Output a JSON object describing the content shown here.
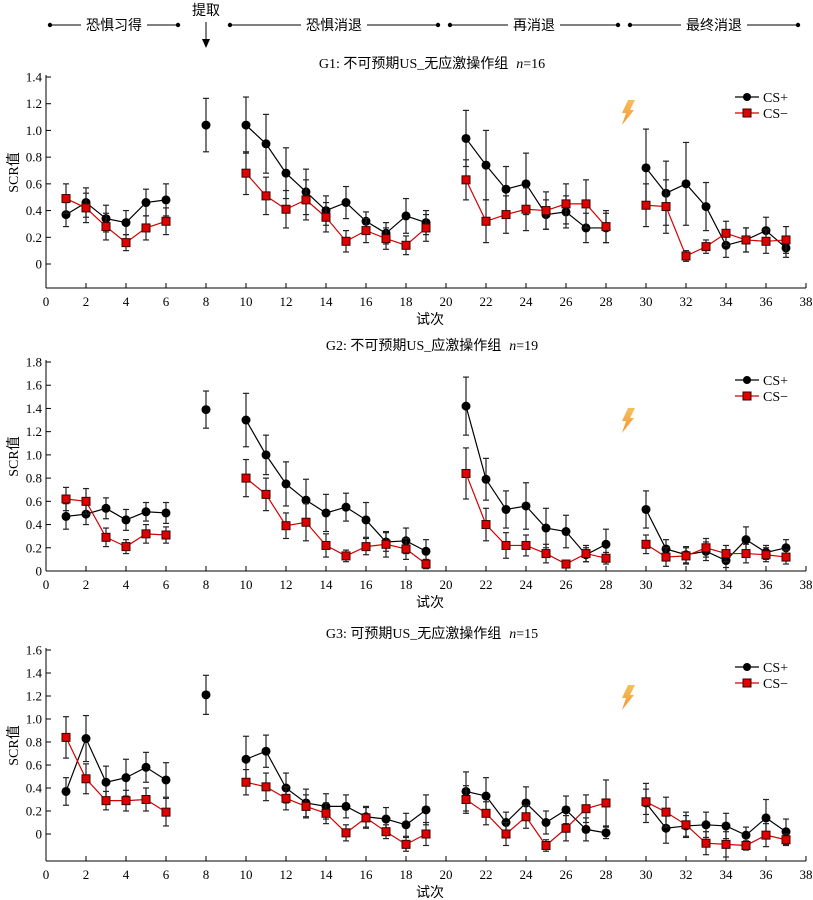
{
  "header": {
    "phases": [
      {
        "label": "恐惧习得",
        "x_start": 1,
        "x_end": 6
      },
      {
        "label": "恐惧消退",
        "x_start": 10,
        "x_end": 19
      },
      {
        "label": "再消退",
        "x_start": 21,
        "x_end": 28
      },
      {
        "label": "最终消退",
        "x_start": 30,
        "x_end": 37
      }
    ],
    "retrieval": {
      "label": "提取",
      "x": 8
    }
  },
  "colors": {
    "cs_plus": "#000000",
    "cs_minus_line": "#d40000",
    "cs_minus_fill": "#e00000",
    "lightning": "#f5a623"
  },
  "chart_data": [
    {
      "type": "line",
      "title": "G1: 不可预期US_无应激操作组",
      "n_label": "n",
      "n_value": "=16",
      "xlabel": "试次",
      "ylabel": "SCR值",
      "xlim": [
        0,
        38
      ],
      "ylim": [
        -0.18,
        1.4
      ],
      "xticks": [
        0,
        2,
        4,
        6,
        8,
        10,
        12,
        14,
        16,
        18,
        20,
        22,
        24,
        26,
        28,
        30,
        32,
        34,
        36,
        38
      ],
      "yticks": [
        0,
        0.2,
        0.4,
        0.6,
        0.8,
        1.0,
        1.2,
        1.4
      ],
      "ytick_labels": [
        "0",
        "0.2",
        "0.4",
        "0.6",
        "0.8",
        "1.0",
        "1.2",
        "1.4"
      ],
      "legend": [
        "CS+",
        "CS−"
      ],
      "legend_position": "top-right",
      "segments": [
        [
          1,
          6
        ],
        [
          8,
          8
        ],
        [
          10,
          19
        ],
        [
          21,
          28
        ],
        [
          30,
          37
        ]
      ],
      "series": [
        {
          "name": "CS+",
          "marker": "circle",
          "x": [
            1,
            2,
            3,
            4,
            5,
            6,
            8,
            10,
            11,
            12,
            13,
            14,
            15,
            16,
            17,
            18,
            19,
            21,
            22,
            23,
            24,
            25,
            26,
            27,
            28,
            30,
            31,
            32,
            33,
            34,
            35,
            36,
            37
          ],
          "y": [
            0.37,
            0.46,
            0.34,
            0.31,
            0.46,
            0.48,
            1.04,
            1.04,
            0.9,
            0.68,
            0.54,
            0.4,
            0.46,
            0.32,
            0.23,
            0.36,
            0.31,
            0.94,
            0.74,
            0.56,
            0.6,
            0.37,
            0.39,
            0.27,
            0.27,
            0.72,
            0.53,
            0.6,
            0.43,
            0.14,
            0.18,
            0.25,
            0.12
          ],
          "err": [
            0.09,
            0.11,
            0.1,
            0.09,
            0.1,
            0.12,
            0.2,
            0.21,
            0.22,
            0.19,
            0.17,
            0.11,
            0.12,
            0.07,
            0.08,
            0.13,
            0.09,
            0.21,
            0.26,
            0.17,
            0.23,
            0.11,
            0.12,
            0.11,
            0.11,
            0.29,
            0.24,
            0.31,
            0.18,
            0.09,
            0.09,
            0.1,
            0.07
          ]
        },
        {
          "name": "CS−",
          "marker": "square",
          "x": [
            1,
            2,
            3,
            4,
            5,
            6,
            10,
            11,
            12,
            13,
            14,
            15,
            16,
            17,
            18,
            19,
            21,
            22,
            23,
            24,
            25,
            26,
            27,
            28,
            30,
            31,
            32,
            33,
            34,
            35,
            36,
            37
          ],
          "y": [
            0.49,
            0.42,
            0.28,
            0.16,
            0.27,
            0.32,
            0.68,
            0.51,
            0.41,
            0.48,
            0.35,
            0.17,
            0.25,
            0.19,
            0.14,
            0.27,
            0.63,
            0.32,
            0.37,
            0.41,
            0.4,
            0.45,
            0.45,
            0.28,
            0.44,
            0.43,
            0.06,
            0.13,
            0.23,
            0.18,
            0.17,
            0.18
          ],
          "err": [
            0.11,
            0.11,
            0.1,
            0.06,
            0.09,
            0.1,
            0.16,
            0.14,
            0.14,
            0.15,
            0.11,
            0.08,
            0.09,
            0.08,
            0.07,
            0.1,
            0.15,
            0.16,
            0.14,
            0.16,
            0.14,
            0.15,
            0.18,
            0.12,
            0.16,
            0.2,
            0.04,
            0.05,
            0.09,
            0.09,
            0.09,
            0.1
          ]
        }
      ]
    },
    {
      "type": "line",
      "title": "G2: 不可预期US_应激操作组",
      "n_label": "n",
      "n_value": "=19",
      "xlabel": "试次",
      "ylabel": "SCR值",
      "xlim": [
        0,
        38
      ],
      "ylim": [
        0,
        1.8
      ],
      "xticks": [
        0,
        2,
        4,
        6,
        8,
        10,
        12,
        14,
        16,
        18,
        20,
        22,
        24,
        26,
        28,
        30,
        32,
        34,
        36,
        38
      ],
      "yticks": [
        0,
        0.2,
        0.4,
        0.6,
        0.8,
        1.0,
        1.2,
        1.4,
        1.6,
        1.8
      ],
      "ytick_labels": [
        "0",
        "0.2",
        "0.4",
        "0.6",
        "0.8",
        "1.0",
        "1.2",
        "1.4",
        "1.6",
        "1.8"
      ],
      "legend": [
        "CS+",
        "CS−"
      ],
      "legend_position": "top-right",
      "segments": [
        [
          1,
          6
        ],
        [
          8,
          8
        ],
        [
          10,
          19
        ],
        [
          21,
          28
        ],
        [
          30,
          37
        ]
      ],
      "series": [
        {
          "name": "CS+",
          "marker": "circle",
          "x": [
            1,
            2,
            3,
            4,
            5,
            6,
            8,
            10,
            11,
            12,
            13,
            14,
            15,
            16,
            17,
            18,
            19,
            21,
            22,
            23,
            24,
            25,
            26,
            27,
            28,
            30,
            31,
            32,
            33,
            34,
            35,
            36,
            37
          ],
          "y": [
            0.47,
            0.49,
            0.54,
            0.44,
            0.51,
            0.5,
            1.39,
            1.3,
            1.0,
            0.75,
            0.61,
            0.5,
            0.55,
            0.44,
            0.25,
            0.26,
            0.17,
            1.42,
            0.79,
            0.53,
            0.56,
            0.37,
            0.34,
            0.14,
            0.23,
            0.53,
            0.19,
            0.14,
            0.17,
            0.09,
            0.27,
            0.16,
            0.2
          ],
          "err": [
            0.11,
            0.09,
            0.09,
            0.09,
            0.08,
            0.09,
            0.16,
            0.23,
            0.17,
            0.19,
            0.18,
            0.16,
            0.12,
            0.15,
            0.08,
            0.11,
            0.1,
            0.25,
            0.18,
            0.16,
            0.2,
            0.17,
            0.14,
            0.06,
            0.13,
            0.16,
            0.08,
            0.07,
            0.08,
            0.06,
            0.11,
            0.06,
            0.07
          ]
        },
        {
          "name": "CS−",
          "marker": "square",
          "x": [
            1,
            2,
            3,
            4,
            5,
            6,
            10,
            11,
            12,
            13,
            14,
            15,
            16,
            17,
            18,
            19,
            21,
            22,
            23,
            24,
            25,
            26,
            27,
            28,
            30,
            31,
            32,
            33,
            34,
            35,
            36,
            37
          ],
          "y": [
            0.62,
            0.6,
            0.29,
            0.21,
            0.32,
            0.31,
            0.8,
            0.66,
            0.39,
            0.42,
            0.22,
            0.13,
            0.21,
            0.23,
            0.19,
            0.06,
            0.84,
            0.4,
            0.22,
            0.22,
            0.15,
            0.06,
            0.15,
            0.11,
            0.23,
            0.12,
            0.13,
            0.2,
            0.15,
            0.15,
            0.14,
            0.12
          ],
          "err": [
            0.1,
            0.11,
            0.08,
            0.06,
            0.08,
            0.07,
            0.16,
            0.14,
            0.11,
            0.16,
            0.1,
            0.05,
            0.07,
            0.11,
            0.09,
            0.04,
            0.22,
            0.14,
            0.11,
            0.09,
            0.08,
            0.03,
            0.07,
            0.05,
            0.08,
            0.08,
            0.07,
            0.08,
            0.07,
            0.08,
            0.06,
            0.06
          ]
        }
      ]
    },
    {
      "type": "line",
      "title": "G3: 可预期US_无应激操作组",
      "n_label": "n",
      "n_value": "=15",
      "xlabel": "试次",
      "ylabel": "SCR值",
      "xlim": [
        0,
        38
      ],
      "ylim": [
        -0.2,
        1.6
      ],
      "xticks": [
        0,
        2,
        4,
        6,
        8,
        10,
        12,
        14,
        16,
        18,
        20,
        22,
        24,
        26,
        28,
        30,
        32,
        34,
        36,
        38
      ],
      "yticks": [
        0,
        0.2,
        0.4,
        0.6,
        0.8,
        1.0,
        1.2,
        1.4,
        1.6
      ],
      "ytick_labels": [
        "0",
        "0.2",
        "0.4",
        "0.6",
        "0.8",
        "1.0",
        "1.2",
        "1.4",
        "1.6"
      ],
      "legend": [
        "CS+",
        "CS−"
      ],
      "legend_position": "top-right",
      "segments": [
        [
          1,
          6
        ],
        [
          8,
          8
        ],
        [
          10,
          19
        ],
        [
          21,
          28
        ],
        [
          30,
          37
        ]
      ],
      "series": [
        {
          "name": "CS+",
          "marker": "circle",
          "x": [
            1,
            2,
            3,
            4,
            5,
            6,
            8,
            10,
            11,
            12,
            13,
            14,
            15,
            16,
            17,
            18,
            19,
            21,
            22,
            23,
            24,
            25,
            26,
            27,
            28,
            30,
            31,
            32,
            33,
            34,
            35,
            36,
            37
          ],
          "y": [
            0.37,
            0.83,
            0.45,
            0.49,
            0.58,
            0.47,
            1.21,
            0.65,
            0.72,
            0.4,
            0.27,
            0.24,
            0.24,
            0.15,
            0.13,
            0.08,
            0.21,
            0.37,
            0.33,
            0.1,
            0.27,
            0.1,
            0.21,
            0.04,
            0.01,
            0.27,
            0.05,
            0.07,
            0.08,
            0.07,
            -0.01,
            0.14,
            0.02
          ],
          "err": [
            0.12,
            0.2,
            0.14,
            0.16,
            0.13,
            0.15,
            0.17,
            0.2,
            0.14,
            0.13,
            0.12,
            0.11,
            0.1,
            0.09,
            0.1,
            0.1,
            0.13,
            0.17,
            0.16,
            0.09,
            0.14,
            0.1,
            0.12,
            0.1,
            0.05,
            0.17,
            0.13,
            0.09,
            0.11,
            0.11,
            0.07,
            0.16,
            0.11
          ]
        },
        {
          "name": "CS−",
          "marker": "square",
          "x": [
            1,
            2,
            3,
            4,
            5,
            6,
            10,
            11,
            12,
            13,
            14,
            15,
            16,
            17,
            18,
            19,
            21,
            22,
            23,
            24,
            25,
            26,
            27,
            28,
            30,
            31,
            32,
            33,
            34,
            35,
            36,
            37
          ],
          "y": [
            0.84,
            0.48,
            0.29,
            0.29,
            0.3,
            0.19,
            0.45,
            0.41,
            0.31,
            0.24,
            0.18,
            0.01,
            0.14,
            0.02,
            -0.09,
            0.0,
            0.3,
            0.18,
            0.0,
            0.15,
            -0.1,
            0.05,
            0.22,
            0.27,
            0.28,
            0.19,
            0.08,
            -0.08,
            -0.09,
            -0.1,
            -0.01,
            -0.05
          ],
          "err": [
            0.18,
            0.13,
            0.08,
            0.09,
            0.1,
            0.12,
            0.11,
            0.12,
            0.1,
            0.1,
            0.09,
            0.07,
            0.09,
            0.06,
            0.06,
            0.1,
            0.12,
            0.1,
            0.1,
            0.1,
            0.05,
            0.11,
            0.12,
            0.2,
            0.11,
            0.13,
            0.11,
            0.1,
            0.11,
            0.04,
            0.1,
            0.05
          ]
        }
      ]
    }
  ]
}
